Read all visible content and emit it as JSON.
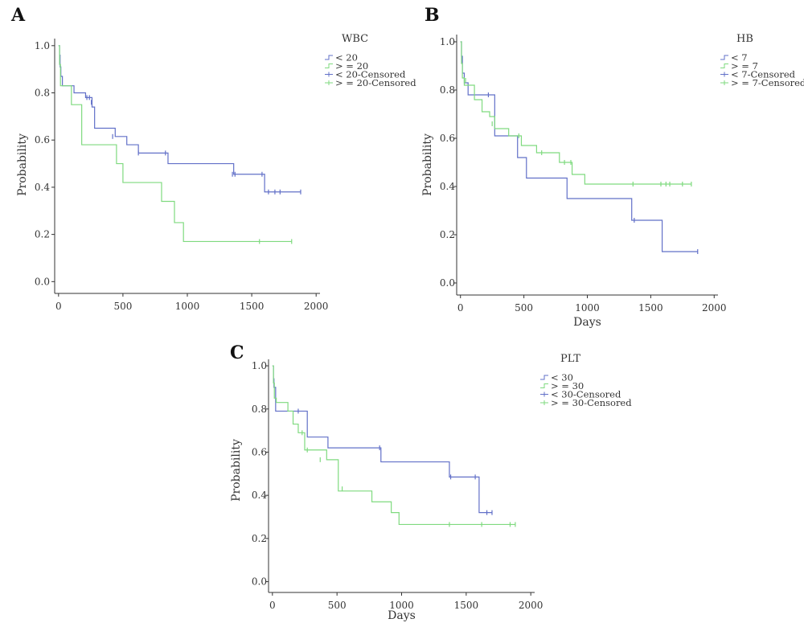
{
  "colors": {
    "group1": "#6270c8",
    "group2": "#7fda7f",
    "axis": "#333333"
  },
  "chart_data": [
    {
      "panel": "A",
      "type": "line",
      "subtype": "kaplan-meier",
      "legend_title": "WBC",
      "legend": [
        "< 20",
        "> = 20",
        "< 20-Censored",
        "> = 20-Censored"
      ],
      "ylabel": "Probability",
      "xlabel": "",
      "xlim": [
        -30,
        2030
      ],
      "ylim": [
        -0.05,
        1.03
      ],
      "xticks": [
        0,
        500,
        1000,
        1500,
        2000
      ],
      "yticks": [
        0.0,
        0.2,
        0.4,
        0.6,
        0.8,
        1.0
      ],
      "ytick_labels": [
        "0.0",
        "0.2",
        "0.4",
        "0.6",
        "0.8",
        "1.0"
      ],
      "series": [
        {
          "name": "< 20",
          "steps": [
            [
              0,
              1.0
            ],
            [
              8,
              0.96
            ],
            [
              12,
              0.91
            ],
            [
              18,
              0.87
            ],
            [
              30,
              0.83
            ],
            [
              120,
              0.8
            ],
            [
              210,
              0.78
            ],
            [
              260,
              0.74
            ],
            [
              280,
              0.65
            ],
            [
              440,
              0.615
            ],
            [
              530,
              0.58
            ],
            [
              620,
              0.545
            ],
            [
              850,
              0.5
            ],
            [
              1360,
              0.455
            ],
            [
              1600,
              0.38
            ]
          ],
          "end_x": 1880,
          "censored": [
            [
              220,
              0.78
            ],
            [
              240,
              0.78
            ],
            [
              255,
              0.76
            ],
            [
              420,
              0.615
            ],
            [
              620,
              0.545
            ],
            [
              830,
              0.545
            ],
            [
              1350,
              0.455
            ],
            [
              1370,
              0.455
            ],
            [
              1580,
              0.455
            ],
            [
              1630,
              0.38
            ],
            [
              1680,
              0.38
            ],
            [
              1720,
              0.38
            ],
            [
              1880,
              0.38
            ]
          ]
        },
        {
          "name": "> = 20",
          "steps": [
            [
              0,
              1.0
            ],
            [
              8,
              0.92
            ],
            [
              15,
              0.83
            ],
            [
              100,
              0.75
            ],
            [
              180,
              0.58
            ],
            [
              450,
              0.5
            ],
            [
              500,
              0.42
            ],
            [
              800,
              0.34
            ],
            [
              900,
              0.25
            ],
            [
              970,
              0.17
            ]
          ],
          "end_x": 1810,
          "censored": [
            [
              1560,
              0.17
            ],
            [
              1810,
              0.17
            ]
          ]
        }
      ]
    },
    {
      "panel": "B",
      "type": "line",
      "subtype": "kaplan-meier",
      "legend_title": "HB",
      "legend": [
        "< 7",
        "> = 7",
        "< 7-Censored",
        "> = 7-Censored"
      ],
      "ylabel": "Probability",
      "xlabel": "Days",
      "xlim": [
        -30,
        2030
      ],
      "ylim": [
        -0.05,
        1.03
      ],
      "xticks": [
        0,
        500,
        1000,
        1500,
        2000
      ],
      "yticks": [
        0.0,
        0.2,
        0.4,
        0.6,
        0.8,
        1.0
      ],
      "ytick_labels": [
        "0.0",
        "0.2",
        "0.4",
        "0.6",
        "0.8",
        "1.0"
      ],
      "series": [
        {
          "name": "< 7",
          "steps": [
            [
              0,
              1.0
            ],
            [
              8,
              0.94
            ],
            [
              15,
              0.87
            ],
            [
              30,
              0.83
            ],
            [
              60,
              0.78
            ],
            [
              270,
              0.61
            ],
            [
              450,
              0.52
            ],
            [
              520,
              0.435
            ],
            [
              840,
              0.35
            ],
            [
              1350,
              0.26
            ],
            [
              1590,
              0.13
            ]
          ],
          "end_x": 1870,
          "censored": [
            [
              220,
              0.78
            ],
            [
              1370,
              0.26
            ],
            [
              1870,
              0.13
            ]
          ]
        },
        {
          "name": "> = 7",
          "steps": [
            [
              0,
              1.0
            ],
            [
              8,
              0.91
            ],
            [
              15,
              0.85
            ],
            [
              30,
              0.82
            ],
            [
              110,
              0.76
            ],
            [
              170,
              0.71
            ],
            [
              230,
              0.69
            ],
            [
              270,
              0.64
            ],
            [
              380,
              0.61
            ],
            [
              480,
              0.57
            ],
            [
              600,
              0.54
            ],
            [
              780,
              0.5
            ],
            [
              880,
              0.45
            ],
            [
              980,
              0.41
            ]
          ],
          "end_x": 1820,
          "censored": [
            [
              40,
              0.84
            ],
            [
              250,
              0.66
            ],
            [
              460,
              0.61
            ],
            [
              640,
              0.54
            ],
            [
              820,
              0.5
            ],
            [
              870,
              0.5
            ],
            [
              1360,
              0.41
            ],
            [
              1580,
              0.41
            ],
            [
              1620,
              0.41
            ],
            [
              1650,
              0.41
            ],
            [
              1750,
              0.41
            ],
            [
              1820,
              0.41
            ]
          ]
        }
      ]
    },
    {
      "panel": "C",
      "type": "line",
      "subtype": "kaplan-meier",
      "legend_title": "PLT",
      "legend": [
        "< 30",
        "> = 30",
        "< 30-Censored",
        "> = 30-Censored"
      ],
      "ylabel": "Probability",
      "xlabel": "Days",
      "xlim": [
        -30,
        2030
      ],
      "ylim": [
        -0.05,
        1.03
      ],
      "xticks": [
        0,
        500,
        1000,
        1500,
        2000
      ],
      "yticks": [
        0.0,
        0.2,
        0.4,
        0.6,
        0.8,
        1.0
      ],
      "ytick_labels": [
        "0.0",
        "0.2",
        "0.4",
        "0.6",
        "0.8",
        "1.0"
      ],
      "series": [
        {
          "name": "< 30",
          "steps": [
            [
              0,
              1.0
            ],
            [
              8,
              0.94
            ],
            [
              12,
              0.9
            ],
            [
              25,
              0.79
            ],
            [
              270,
              0.67
            ],
            [
              430,
              0.62
            ],
            [
              840,
              0.555
            ],
            [
              1370,
              0.485
            ],
            [
              1600,
              0.32
            ]
          ],
          "end_x": 1700,
          "censored": [
            [
              200,
              0.79
            ],
            [
              830,
              0.62
            ],
            [
              1380,
              0.485
            ],
            [
              1570,
              0.485
            ],
            [
              1660,
              0.32
            ],
            [
              1700,
              0.32
            ]
          ]
        },
        {
          "name": "> = 30",
          "steps": [
            [
              0,
              1.0
            ],
            [
              8,
              0.92
            ],
            [
              15,
              0.85
            ],
            [
              30,
              0.83
            ],
            [
              120,
              0.79
            ],
            [
              160,
              0.73
            ],
            [
              200,
              0.69
            ],
            [
              250,
              0.61
            ],
            [
              420,
              0.565
            ],
            [
              510,
              0.42
            ],
            [
              770,
              0.37
            ],
            [
              920,
              0.32
            ],
            [
              980,
              0.265
            ]
          ],
          "end_x": 1880,
          "censored": [
            [
              230,
              0.69
            ],
            [
              270,
              0.61
            ],
            [
              370,
              0.565
            ],
            [
              540,
              0.43
            ],
            [
              1370,
              0.265
            ],
            [
              1620,
              0.265
            ],
            [
              1840,
              0.265
            ],
            [
              1880,
              0.265
            ]
          ]
        }
      ]
    }
  ]
}
